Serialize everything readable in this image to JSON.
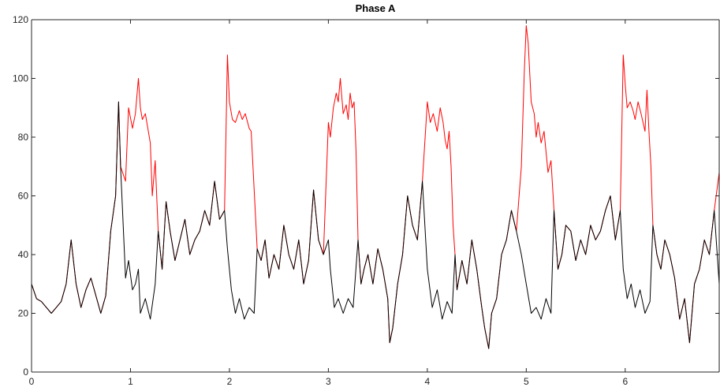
{
  "chart_data": {
    "type": "line",
    "title": "Phase A",
    "xlabel": "",
    "ylabel": "",
    "xlim": [
      0,
      6.95
    ],
    "ylim": [
      0,
      120
    ],
    "x_ticks": [
      0,
      1,
      2,
      3,
      4,
      5,
      6
    ],
    "y_ticks": [
      0,
      20,
      40,
      60,
      80,
      100,
      120
    ],
    "grid": false,
    "legend": "none",
    "series": [
      {
        "color": "#ff0000",
        "points": [
          [
            0.0,
            30
          ],
          [
            0.05,
            25
          ],
          [
            0.1,
            24
          ],
          [
            0.15,
            22
          ],
          [
            0.2,
            20
          ],
          [
            0.25,
            22
          ],
          [
            0.3,
            24
          ],
          [
            0.35,
            30
          ],
          [
            0.4,
            45
          ],
          [
            0.45,
            30
          ],
          [
            0.5,
            22
          ],
          [
            0.55,
            28
          ],
          [
            0.6,
            32
          ],
          [
            0.65,
            26
          ],
          [
            0.7,
            20
          ],
          [
            0.75,
            26
          ],
          [
            0.8,
            48
          ],
          [
            0.85,
            60
          ],
          [
            0.88,
            92
          ],
          [
            0.9,
            70
          ],
          [
            0.95,
            65
          ],
          [
            0.98,
            90
          ],
          [
            1.02,
            83
          ],
          [
            1.05,
            88
          ],
          [
            1.08,
            100
          ],
          [
            1.1,
            90
          ],
          [
            1.12,
            86
          ],
          [
            1.15,
            88
          ],
          [
            1.18,
            82
          ],
          [
            1.2,
            78
          ],
          [
            1.22,
            60
          ],
          [
            1.25,
            72
          ],
          [
            1.28,
            48
          ],
          [
            1.32,
            35
          ],
          [
            1.36,
            58
          ],
          [
            1.4,
            48
          ],
          [
            1.45,
            38
          ],
          [
            1.5,
            45
          ],
          [
            1.55,
            52
          ],
          [
            1.6,
            40
          ],
          [
            1.65,
            45
          ],
          [
            1.7,
            48
          ],
          [
            1.75,
            55
          ],
          [
            1.8,
            50
          ],
          [
            1.85,
            65
          ],
          [
            1.9,
            52
          ],
          [
            1.95,
            55
          ],
          [
            1.98,
            108
          ],
          [
            2.0,
            92
          ],
          [
            2.03,
            86
          ],
          [
            2.06,
            85
          ],
          [
            2.1,
            89
          ],
          [
            2.13,
            86
          ],
          [
            2.16,
            88
          ],
          [
            2.2,
            83
          ],
          [
            2.22,
            82
          ],
          [
            2.25,
            62
          ],
          [
            2.28,
            42
          ],
          [
            2.32,
            38
          ],
          [
            2.36,
            45
          ],
          [
            2.4,
            32
          ],
          [
            2.45,
            40
          ],
          [
            2.5,
            35
          ],
          [
            2.55,
            50
          ],
          [
            2.6,
            40
          ],
          [
            2.65,
            35
          ],
          [
            2.7,
            45
          ],
          [
            2.75,
            30
          ],
          [
            2.8,
            38
          ],
          [
            2.85,
            62
          ],
          [
            2.9,
            45
          ],
          [
            2.95,
            40
          ],
          [
            3.0,
            85
          ],
          [
            3.02,
            80
          ],
          [
            3.05,
            90
          ],
          [
            3.08,
            95
          ],
          [
            3.1,
            92
          ],
          [
            3.12,
            100
          ],
          [
            3.15,
            88
          ],
          [
            3.18,
            91
          ],
          [
            3.2,
            86
          ],
          [
            3.22,
            95
          ],
          [
            3.24,
            90
          ],
          [
            3.26,
            92
          ],
          [
            3.28,
            75
          ],
          [
            3.3,
            45
          ],
          [
            3.33,
            30
          ],
          [
            3.36,
            35
          ],
          [
            3.4,
            40
          ],
          [
            3.45,
            30
          ],
          [
            3.5,
            42
          ],
          [
            3.55,
            35
          ],
          [
            3.6,
            25
          ],
          [
            3.62,
            10
          ],
          [
            3.65,
            15
          ],
          [
            3.7,
            30
          ],
          [
            3.75,
            40
          ],
          [
            3.8,
            60
          ],
          [
            3.85,
            50
          ],
          [
            3.9,
            45
          ],
          [
            3.95,
            65
          ],
          [
            4.0,
            92
          ],
          [
            4.03,
            85
          ],
          [
            4.06,
            88
          ],
          [
            4.1,
            82
          ],
          [
            4.13,
            90
          ],
          [
            4.16,
            85
          ],
          [
            4.18,
            79
          ],
          [
            4.2,
            76
          ],
          [
            4.22,
            82
          ],
          [
            4.24,
            70
          ],
          [
            4.26,
            50
          ],
          [
            4.28,
            40
          ],
          [
            4.3,
            28
          ],
          [
            4.35,
            38
          ],
          [
            4.4,
            30
          ],
          [
            4.45,
            45
          ],
          [
            4.5,
            35
          ],
          [
            4.55,
            22
          ],
          [
            4.58,
            15
          ],
          [
            4.62,
            8
          ],
          [
            4.65,
            20
          ],
          [
            4.7,
            25
          ],
          [
            4.75,
            40
          ],
          [
            4.8,
            45
          ],
          [
            4.85,
            55
          ],
          [
            4.9,
            48
          ],
          [
            4.95,
            70
          ],
          [
            4.98,
            102
          ],
          [
            5.0,
            118
          ],
          [
            5.02,
            112
          ],
          [
            5.05,
            92
          ],
          [
            5.08,
            88
          ],
          [
            5.1,
            80
          ],
          [
            5.12,
            85
          ],
          [
            5.15,
            78
          ],
          [
            5.18,
            82
          ],
          [
            5.2,
            75
          ],
          [
            5.22,
            68
          ],
          [
            5.25,
            72
          ],
          [
            5.28,
            55
          ],
          [
            5.32,
            35
          ],
          [
            5.36,
            40
          ],
          [
            5.4,
            50
          ],
          [
            5.45,
            48
          ],
          [
            5.5,
            38
          ],
          [
            5.55,
            45
          ],
          [
            5.6,
            40
          ],
          [
            5.65,
            50
          ],
          [
            5.7,
            45
          ],
          [
            5.75,
            48
          ],
          [
            5.8,
            55
          ],
          [
            5.85,
            60
          ],
          [
            5.9,
            45
          ],
          [
            5.95,
            55
          ],
          [
            5.98,
            108
          ],
          [
            6.0,
            98
          ],
          [
            6.02,
            90
          ],
          [
            6.05,
            92
          ],
          [
            6.08,
            89
          ],
          [
            6.1,
            86
          ],
          [
            6.13,
            92
          ],
          [
            6.16,
            88
          ],
          [
            6.2,
            82
          ],
          [
            6.22,
            96
          ],
          [
            6.24,
            82
          ],
          [
            6.26,
            70
          ],
          [
            6.28,
            50
          ],
          [
            6.32,
            40
          ],
          [
            6.36,
            35
          ],
          [
            6.4,
            45
          ],
          [
            6.45,
            40
          ],
          [
            6.5,
            32
          ],
          [
            6.55,
            18
          ],
          [
            6.6,
            25
          ],
          [
            6.65,
            10
          ],
          [
            6.7,
            30
          ],
          [
            6.75,
            35
          ],
          [
            6.8,
            45
          ],
          [
            6.85,
            40
          ],
          [
            6.9,
            55
          ],
          [
            6.95,
            68
          ]
        ]
      },
      {
        "color": "#000000",
        "points": [
          [
            0.0,
            30
          ],
          [
            0.05,
            25
          ],
          [
            0.1,
            24
          ],
          [
            0.15,
            22
          ],
          [
            0.2,
            20
          ],
          [
            0.25,
            22
          ],
          [
            0.3,
            24
          ],
          [
            0.35,
            30
          ],
          [
            0.4,
            45
          ],
          [
            0.45,
            30
          ],
          [
            0.5,
            22
          ],
          [
            0.55,
            28
          ],
          [
            0.6,
            32
          ],
          [
            0.65,
            26
          ],
          [
            0.7,
            20
          ],
          [
            0.75,
            26
          ],
          [
            0.8,
            48
          ],
          [
            0.85,
            60
          ],
          [
            0.88,
            92
          ],
          [
            0.9,
            70
          ],
          [
            0.95,
            32
          ],
          [
            0.98,
            38
          ],
          [
            1.02,
            28
          ],
          [
            1.05,
            30
          ],
          [
            1.08,
            35
          ],
          [
            1.1,
            20
          ],
          [
            1.15,
            25
          ],
          [
            1.2,
            18
          ],
          [
            1.25,
            30
          ],
          [
            1.28,
            48
          ],
          [
            1.32,
            35
          ],
          [
            1.36,
            58
          ],
          [
            1.4,
            48
          ],
          [
            1.45,
            38
          ],
          [
            1.5,
            45
          ],
          [
            1.55,
            52
          ],
          [
            1.6,
            40
          ],
          [
            1.65,
            45
          ],
          [
            1.7,
            48
          ],
          [
            1.75,
            55
          ],
          [
            1.8,
            50
          ],
          [
            1.85,
            65
          ],
          [
            1.9,
            52
          ],
          [
            1.95,
            55
          ],
          [
            1.98,
            42
          ],
          [
            2.02,
            28
          ],
          [
            2.06,
            20
          ],
          [
            2.1,
            25
          ],
          [
            2.15,
            18
          ],
          [
            2.2,
            22
          ],
          [
            2.25,
            20
          ],
          [
            2.28,
            42
          ],
          [
            2.32,
            38
          ],
          [
            2.36,
            45
          ],
          [
            2.4,
            32
          ],
          [
            2.45,
            40
          ],
          [
            2.5,
            35
          ],
          [
            2.55,
            50
          ],
          [
            2.6,
            40
          ],
          [
            2.65,
            35
          ],
          [
            2.7,
            45
          ],
          [
            2.75,
            30
          ],
          [
            2.8,
            38
          ],
          [
            2.85,
            62
          ],
          [
            2.9,
            45
          ],
          [
            2.95,
            40
          ],
          [
            3.0,
            45
          ],
          [
            3.02,
            35
          ],
          [
            3.06,
            22
          ],
          [
            3.1,
            25
          ],
          [
            3.15,
            20
          ],
          [
            3.2,
            25
          ],
          [
            3.25,
            22
          ],
          [
            3.3,
            45
          ],
          [
            3.33,
            30
          ],
          [
            3.36,
            35
          ],
          [
            3.4,
            40
          ],
          [
            3.45,
            30
          ],
          [
            3.5,
            42
          ],
          [
            3.55,
            35
          ],
          [
            3.6,
            25
          ],
          [
            3.62,
            10
          ],
          [
            3.65,
            15
          ],
          [
            3.7,
            30
          ],
          [
            3.75,
            40
          ],
          [
            3.8,
            60
          ],
          [
            3.85,
            50
          ],
          [
            3.9,
            45
          ],
          [
            3.95,
            65
          ],
          [
            4.0,
            35
          ],
          [
            4.05,
            22
          ],
          [
            4.1,
            28
          ],
          [
            4.15,
            18
          ],
          [
            4.2,
            24
          ],
          [
            4.25,
            20
          ],
          [
            4.28,
            40
          ],
          [
            4.3,
            28
          ],
          [
            4.35,
            38
          ],
          [
            4.4,
            30
          ],
          [
            4.45,
            45
          ],
          [
            4.5,
            35
          ],
          [
            4.55,
            22
          ],
          [
            4.58,
            15
          ],
          [
            4.62,
            8
          ],
          [
            4.65,
            20
          ],
          [
            4.7,
            25
          ],
          [
            4.75,
            40
          ],
          [
            4.8,
            45
          ],
          [
            4.85,
            55
          ],
          [
            4.9,
            48
          ],
          [
            4.95,
            40
          ],
          [
            5.0,
            30
          ],
          [
            5.05,
            20
          ],
          [
            5.1,
            22
          ],
          [
            5.15,
            18
          ],
          [
            5.2,
            25
          ],
          [
            5.25,
            20
          ],
          [
            5.28,
            55
          ],
          [
            5.32,
            35
          ],
          [
            5.36,
            40
          ],
          [
            5.4,
            50
          ],
          [
            5.45,
            48
          ],
          [
            5.5,
            38
          ],
          [
            5.55,
            45
          ],
          [
            5.6,
            40
          ],
          [
            5.65,
            50
          ],
          [
            5.7,
            45
          ],
          [
            5.75,
            48
          ],
          [
            5.8,
            55
          ],
          [
            5.85,
            60
          ],
          [
            5.9,
            45
          ],
          [
            5.95,
            55
          ],
          [
            5.98,
            35
          ],
          [
            6.02,
            25
          ],
          [
            6.06,
            30
          ],
          [
            6.1,
            22
          ],
          [
            6.15,
            28
          ],
          [
            6.2,
            20
          ],
          [
            6.25,
            24
          ],
          [
            6.28,
            50
          ],
          [
            6.32,
            40
          ],
          [
            6.36,
            35
          ],
          [
            6.4,
            45
          ],
          [
            6.45,
            40
          ],
          [
            6.5,
            32
          ],
          [
            6.55,
            18
          ],
          [
            6.6,
            25
          ],
          [
            6.65,
            10
          ],
          [
            6.7,
            30
          ],
          [
            6.75,
            35
          ],
          [
            6.8,
            45
          ],
          [
            6.85,
            40
          ],
          [
            6.9,
            55
          ],
          [
            6.95,
            30
          ]
        ]
      }
    ]
  }
}
